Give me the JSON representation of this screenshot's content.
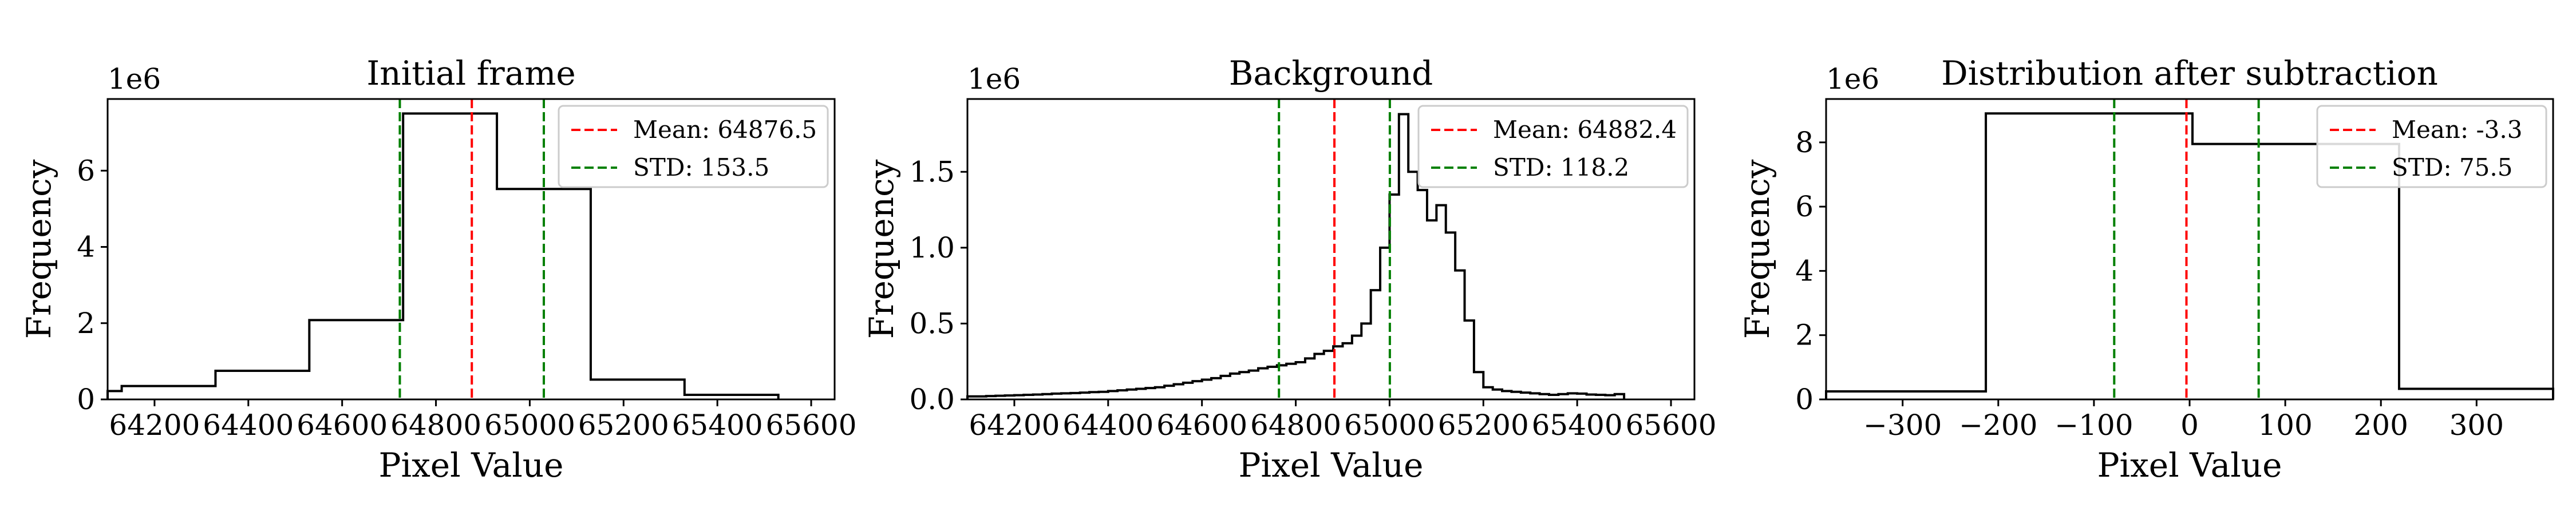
{
  "chart_data": [
    {
      "type": "histogram",
      "title": "Initial frame",
      "xlabel": "Pixel Value",
      "ylabel": "Frequency",
      "y_offset_label": "1e6",
      "xlim": [
        64100,
        65650
      ],
      "ylim": [
        0,
        7.88
      ],
      "xticks": [
        64200,
        64400,
        64600,
        64800,
        65000,
        65200,
        65400,
        65600
      ],
      "yticks": [
        0,
        2,
        4,
        6
      ],
      "bins": [
        {
          "x0": 64100,
          "x1": 64130,
          "y": 0.22
        },
        {
          "x0": 64130,
          "x1": 64330,
          "y": 0.35
        },
        {
          "x0": 64330,
          "x1": 64530,
          "y": 0.75
        },
        {
          "x0": 64530,
          "x1": 64730,
          "y": 2.08
        },
        {
          "x0": 64730,
          "x1": 64930,
          "y": 7.5
        },
        {
          "x0": 64930,
          "x1": 65130,
          "y": 5.52
        },
        {
          "x0": 65130,
          "x1": 65330,
          "y": 0.52
        },
        {
          "x0": 65330,
          "x1": 65530,
          "y": 0.12
        }
      ],
      "mean": 64876.5,
      "std": 153.5,
      "legend": [
        {
          "label": "Mean: 64876.5",
          "color": "#ff0000"
        },
        {
          "label": "STD: 153.5",
          "color": "#008000"
        }
      ],
      "legend_position": "upper right"
    },
    {
      "type": "histogram",
      "title": "Background",
      "xlabel": "Pixel Value",
      "ylabel": "Frequency",
      "y_offset_label": "1e6",
      "xlim": [
        64100,
        65650
      ],
      "ylim": [
        0,
        1.98
      ],
      "xticks": [
        64200,
        64400,
        64600,
        64800,
        65000,
        65200,
        65400,
        65600
      ],
      "yticks": [
        0,
        0.5,
        1.0,
        1.5
      ],
      "yticklabels": [
        "0.0",
        "0.5",
        "1.0",
        "1.5"
      ],
      "bin_start": 64100,
      "bin_width": 20,
      "bin_values": [
        0.02,
        0.02,
        0.022,
        0.024,
        0.026,
        0.028,
        0.03,
        0.032,
        0.035,
        0.038,
        0.04,
        0.042,
        0.045,
        0.048,
        0.05,
        0.055,
        0.06,
        0.065,
        0.07,
        0.075,
        0.08,
        0.09,
        0.1,
        0.11,
        0.12,
        0.13,
        0.14,
        0.155,
        0.17,
        0.18,
        0.19,
        0.205,
        0.215,
        0.225,
        0.235,
        0.245,
        0.27,
        0.3,
        0.32,
        0.35,
        0.37,
        0.42,
        0.5,
        0.72,
        1.0,
        1.35,
        1.88,
        1.5,
        1.38,
        1.18,
        1.28,
        1.1,
        0.85,
        0.52,
        0.18,
        0.08,
        0.065,
        0.055,
        0.05,
        0.045,
        0.04,
        0.035,
        0.03,
        0.035,
        0.04,
        0.038,
        0.032,
        0.03,
        0.028,
        0.035
      ],
      "mean": 64882.4,
      "std": 118.2,
      "legend": [
        {
          "label": "Mean: 64882.4",
          "color": "#ff0000"
        },
        {
          "label": "STD: 118.2",
          "color": "#008000"
        }
      ],
      "legend_position": "upper right"
    },
    {
      "type": "histogram",
      "title": "Distribution after subtraction",
      "xlabel": "Pixel Value",
      "ylabel": "Frequency",
      "y_offset_label": "1e6",
      "xlim": [
        -380,
        380
      ],
      "ylim": [
        0,
        9.35
      ],
      "xticks": [
        -300,
        -200,
        -100,
        0,
        100,
        200,
        300
      ],
      "xticklabels": [
        "−300",
        "−200",
        "−100",
        "0",
        "100",
        "200",
        "300"
      ],
      "yticks": [
        0,
        2,
        4,
        6,
        8
      ],
      "bins": [
        {
          "x0": -380,
          "x1": -213,
          "y": 0.25
        },
        {
          "x0": -213,
          "x1": 3,
          "y": 8.9
        },
        {
          "x0": 3,
          "x1": 219,
          "y": 7.95
        },
        {
          "x0": 219,
          "x1": 380,
          "y": 0.33
        }
      ],
      "mean": -3.3,
      "std": 75.5,
      "legend": [
        {
          "label": "Mean: -3.3",
          "color": "#ff0000"
        },
        {
          "label": "STD: 75.5",
          "color": "#008000"
        }
      ],
      "legend_position": "upper right"
    }
  ]
}
